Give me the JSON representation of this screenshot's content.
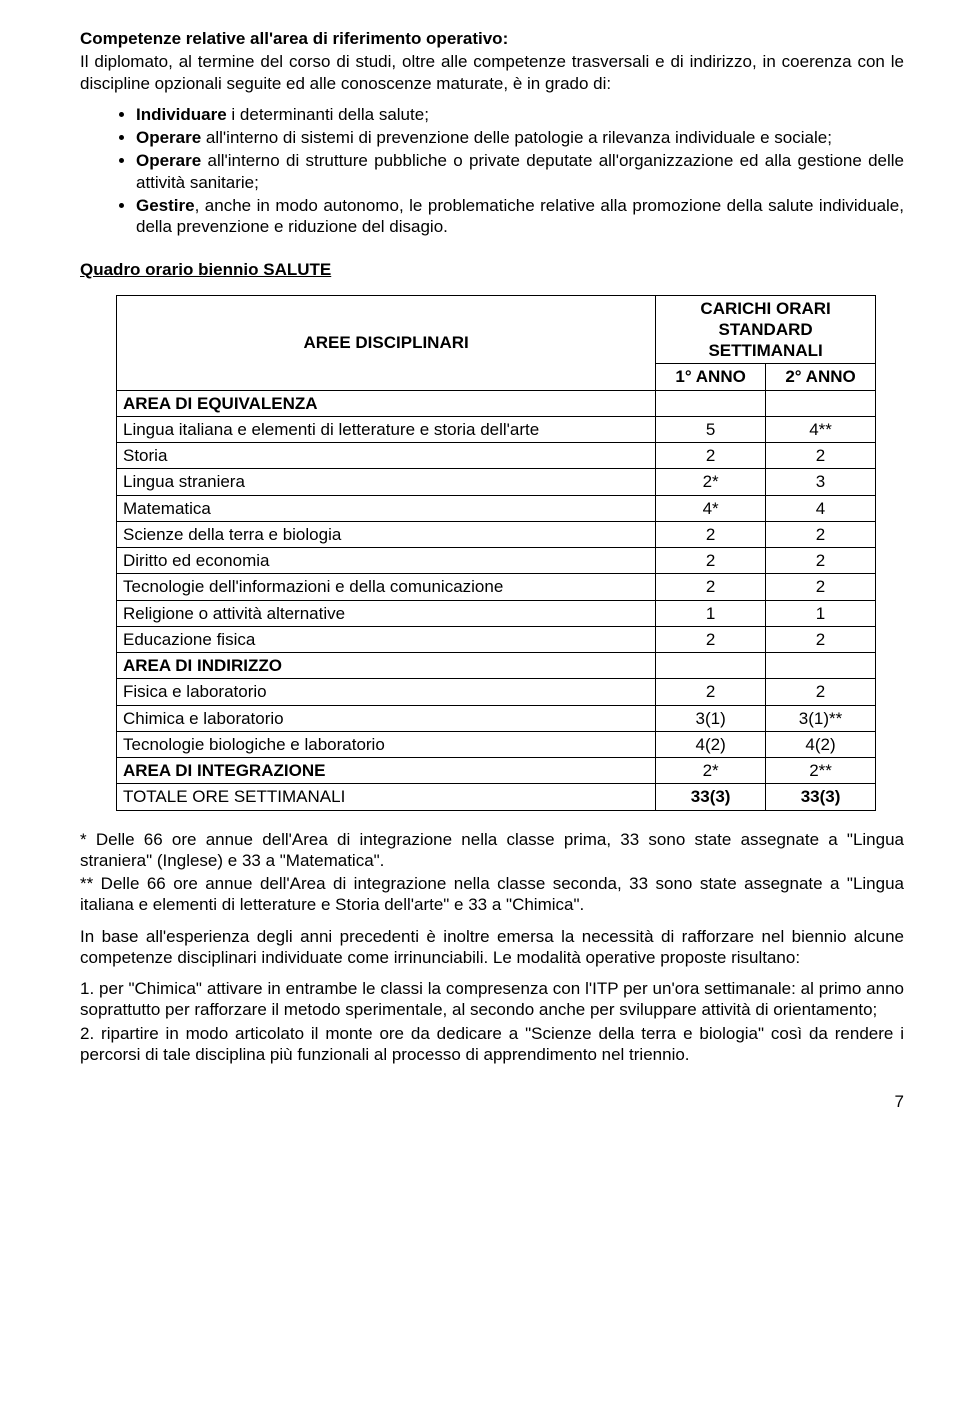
{
  "heading": "Competenze relative all'area di riferimento operativo:",
  "intro": "Il diplomato, al termine del corso di studi, oltre alle competenze trasversali e di indirizzo, in coerenza con le discipline opzionali seguite ed alle conoscenze maturate, è in grado di:",
  "bullets": [
    {
      "lead": "Individuare",
      "rest": " i determinanti della salute;"
    },
    {
      "lead": "Operare",
      "rest": " all'interno di sistemi di prevenzione delle patologie a rilevanza individuale e sociale;"
    },
    {
      "lead": "Operare",
      "rest": " all'interno di strutture pubbliche o private deputate all'organizzazione ed alla gestione delle attività sanitarie;"
    },
    {
      "lead": "Gestire",
      "rest": ", anche in modo autonomo, le problematiche relative alla promozione della salute individuale, della prevenzione e riduzione del disagio."
    }
  ],
  "section_title": "Quadro orario biennio SALUTE",
  "table": {
    "col_header_main": "AREE DISCIPLINARI",
    "col_header_right": "CARICHI ORARI STANDARD SETTIMANALI",
    "sub_headers": [
      "1° ANNO",
      "2° ANNO"
    ],
    "rows": [
      {
        "label": "AREA DI EQUIVALENZA",
        "bold": true,
        "y1": "",
        "y2": ""
      },
      {
        "label": "Lingua italiana e elementi di letterature e storia dell'arte",
        "y1": "5",
        "y2": "4**"
      },
      {
        "label": "Storia",
        "y1": "2",
        "y2": "2"
      },
      {
        "label": "Lingua straniera",
        "y1": "2*",
        "y2": "3"
      },
      {
        "label": "Matematica",
        "y1": "4*",
        "y2": "4"
      },
      {
        "label": "Scienze della terra e biologia",
        "y1": "2",
        "y2": "2"
      },
      {
        "label": "Diritto ed economia",
        "y1": "2",
        "y2": "2"
      },
      {
        "label": "Tecnologie dell'informazioni e della comunicazione",
        "y1": "2",
        "y2": "2"
      },
      {
        "label": "Religione o attività alternative",
        "y1": "1",
        "y2": "1"
      },
      {
        "label": "Educazione fisica",
        "y1": "2",
        "y2": "2"
      },
      {
        "label": "AREA DI INDIRIZZO",
        "bold": true,
        "y1": "",
        "y2": ""
      },
      {
        "label": "Fisica e laboratorio",
        "y1": "2",
        "y2": "2"
      },
      {
        "label": "Chimica e laboratorio",
        "y1": "3(1)",
        "y2": "3(1)**"
      },
      {
        "label": "Tecnologie biologiche  e laboratorio",
        "y1": "4(2)",
        "y2": "4(2)"
      },
      {
        "label": "AREA DI INTEGRAZIONE",
        "bold": true,
        "y1": "2*",
        "y2": "2**"
      },
      {
        "label": "TOTALE ORE SETTIMANALI",
        "y1": "33(3)",
        "y2": "33(3)",
        "boldnums": true
      }
    ]
  },
  "footnote1": "* Delle 66 ore annue dell'Area di integrazione nella classe prima, 33 sono state assegnate a \"Lingua straniera\" (Inglese) e 33 a \"Matematica\".",
  "footnote2": "** Delle 66 ore annue dell'Area di integrazione nella classe seconda, 33 sono state assegnate a \"Lingua italiana e elementi di letterature e Storia dell'arte\" e 33 a \"Chimica\".",
  "para2": "In base all'esperienza degli anni precedenti è inoltre emersa la necessità di rafforzare nel biennio alcune competenze disciplinari individuate come irrinunciabili. Le modalità operative proposte risultano:",
  "numlist": [
    "1. per \"Chimica\" attivare in entrambe le classi la compresenza con l'ITP per un'ora settimanale: al primo anno soprattutto per rafforzare il metodo sperimentale, al secondo anche per sviluppare attività di orientamento;",
    "2. ripartire in modo articolato il monte ore da dedicare a \"Scienze della terra e biologia\" così da rendere i percorsi di tale disciplina più funzionali al processo di apprendimento nel triennio."
  ],
  "page_number": "7"
}
